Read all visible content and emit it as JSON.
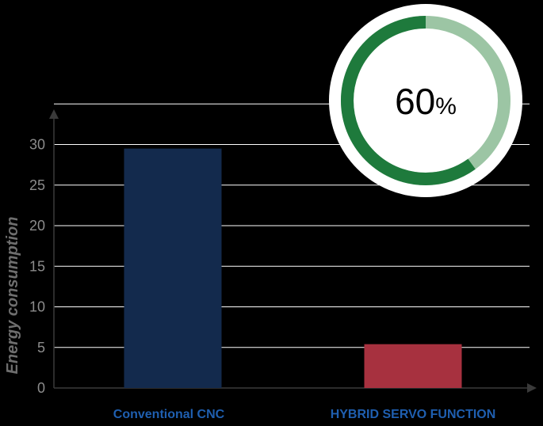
{
  "chart_data": {
    "type": "bar",
    "categories": [
      "Conventional CNC",
      "HYBRID SERVO FUNCTION"
    ],
    "values": [
      29.5,
      5.4
    ],
    "ylabel": "Energy consumption",
    "xlabel": "",
    "ylim": [
      0,
      35
    ],
    "yticks": [
      0,
      5,
      10,
      15,
      20,
      25,
      30
    ],
    "grid": true,
    "bar_colors": [
      "#132a4d",
      "#a7313f"
    ]
  },
  "badge": {
    "number": "60",
    "unit": "%",
    "level": 0.6,
    "color_filled": "#1e7a3c",
    "color_track": "#9cc5a4"
  }
}
